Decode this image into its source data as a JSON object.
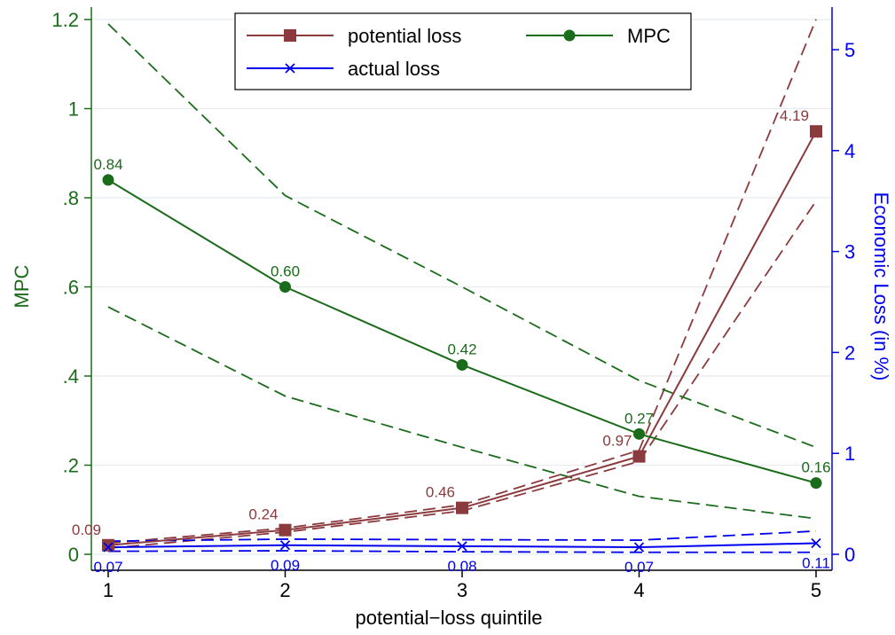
{
  "chart_data": {
    "type": "line",
    "title": "",
    "xlabel": "potential−loss quintile",
    "ylabel_left": "MPC",
    "ylabel_right": "Economic Loss (in %)",
    "x": [
      1,
      2,
      3,
      4,
      5
    ],
    "x_tick_labels": [
      "1",
      "2",
      "3",
      "4",
      "5"
    ],
    "xlim": [
      1,
      5
    ],
    "ylim_left": [
      0,
      1.2
    ],
    "ylim_right": [
      0,
      5.3
    ],
    "y_left_ticks": [
      0,
      0.2,
      0.4,
      0.6,
      0.8,
      1,
      1.2
    ],
    "y_left_tick_labels": [
      "0",
      ".2",
      ".4",
      ".6",
      ".8",
      "1",
      "1.2"
    ],
    "y_right_ticks": [
      0,
      1,
      2,
      3,
      4,
      5
    ],
    "y_right_tick_labels": [
      "0",
      "1",
      "2",
      "3",
      "4",
      "5"
    ],
    "grid": "horizontal",
    "legend_position": "top-center",
    "series": [
      {
        "name": "potential loss",
        "axis": "right",
        "color": "#8b3a3e",
        "marker": "square",
        "values": [
          0.09,
          0.24,
          0.46,
          0.97,
          4.19
        ],
        "labels": [
          "0.09",
          "0.24",
          "0.46",
          "0.97",
          "4.19"
        ],
        "ci_lower": [
          0.06,
          0.22,
          0.43,
          0.92,
          3.5
        ],
        "ci_upper": [
          0.11,
          0.26,
          0.49,
          1.03,
          5.3
        ]
      },
      {
        "name": "MPC",
        "axis": "left",
        "color": "#1a6b1a",
        "marker": "circle",
        "values": [
          0.84,
          0.6,
          0.425,
          0.27,
          0.16
        ],
        "labels": [
          "0.84",
          "0.60",
          "0.42",
          "0.27",
          "0.16"
        ],
        "ci_lower": [
          0.555,
          0.355,
          0.24,
          0.13,
          0.08
        ],
        "ci_upper": [
          1.19,
          0.805,
          0.6,
          0.39,
          0.24
        ]
      },
      {
        "name": "actual loss",
        "axis": "right",
        "color": "#0000ee",
        "marker": "x",
        "values": [
          0.07,
          0.09,
          0.08,
          0.07,
          0.11
        ],
        "labels": [
          "0.07",
          "0.09",
          "0.08",
          "0.07",
          "0.11"
        ],
        "ci_lower": [
          0.03,
          0.035,
          0.025,
          0.02,
          0.02
        ],
        "ci_upper": [
          0.13,
          0.15,
          0.145,
          0.14,
          0.23
        ]
      }
    ],
    "legend_entries": [
      "potential loss",
      "MPC",
      "actual loss"
    ]
  },
  "colors": {
    "mpc": "#1a6b1a",
    "potential": "#8b3a3e",
    "actual": "#0000ee",
    "grid": "#e6ecef"
  }
}
